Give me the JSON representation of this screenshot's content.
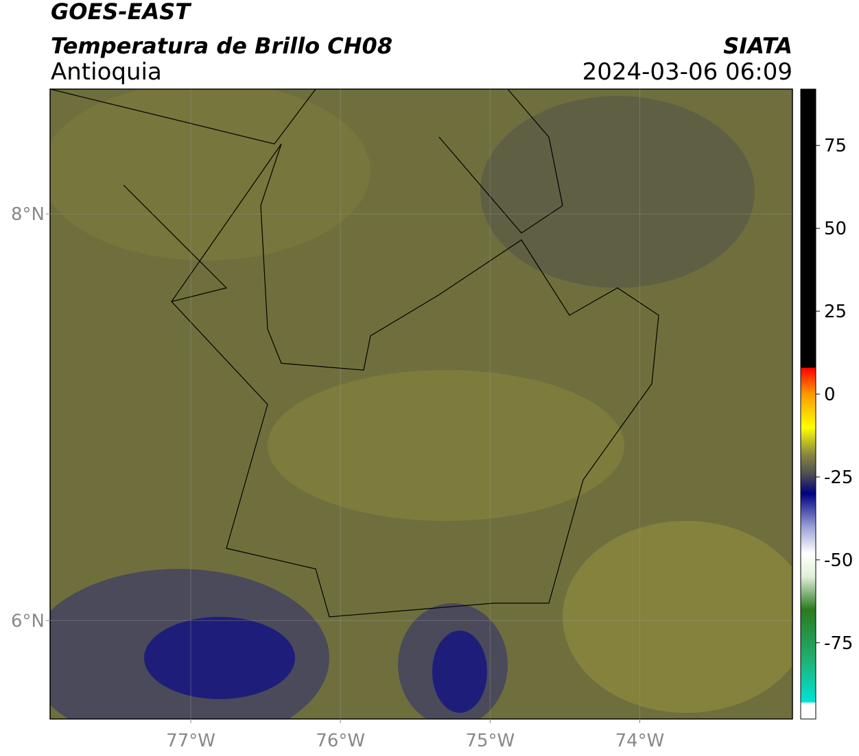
{
  "header": {
    "title": "GOES-EAST",
    "subtitle": "Temperatura de Brillo CH08",
    "region": "Antioquia",
    "source": "SIATA",
    "datetime": "2024-03-06 06:09"
  },
  "map": {
    "lonlim": [
      -77.94,
      -72.98
    ],
    "latlim": [
      5.516,
      8.614
    ],
    "lon_ticks": [
      {
        "value": -77,
        "label": "77°W"
      },
      {
        "value": -76,
        "label": "76°W"
      },
      {
        "value": -75,
        "label": "75°W"
      },
      {
        "value": -74,
        "label": "74°W"
      }
    ],
    "lat_ticks": [
      {
        "value": 8,
        "label": "8°N"
      },
      {
        "value": 6,
        "label": "6°N"
      }
    ],
    "grid": true
  },
  "colorbar": {
    "lim": [
      -98,
      92
    ],
    "ticks": [
      75,
      50,
      25,
      0,
      -25,
      -50,
      -75
    ],
    "stops": [
      {
        "value": -98,
        "color": "#ffffff"
      },
      {
        "value": -93,
        "color": "#ffffff"
      },
      {
        "value": -93,
        "color": "#00e5d8"
      },
      {
        "value": -80,
        "color": "#20b070"
      },
      {
        "value": -65,
        "color": "#2a7a20"
      },
      {
        "value": -55,
        "color": "#e0f0d8"
      },
      {
        "value": -48,
        "color": "#ffffff"
      },
      {
        "value": -40,
        "color": "#9aa0d8"
      },
      {
        "value": -30,
        "color": "#000080"
      },
      {
        "value": -24,
        "color": "#505050"
      },
      {
        "value": -18,
        "color": "#8a8a40"
      },
      {
        "value": -10,
        "color": "#ffff00"
      },
      {
        "value": 0,
        "color": "#ff9900"
      },
      {
        "value": 8,
        "color": "#ff0000"
      },
      {
        "value": 8,
        "color": "#000000"
      },
      {
        "value": 92,
        "color": "#000000"
      }
    ]
  }
}
